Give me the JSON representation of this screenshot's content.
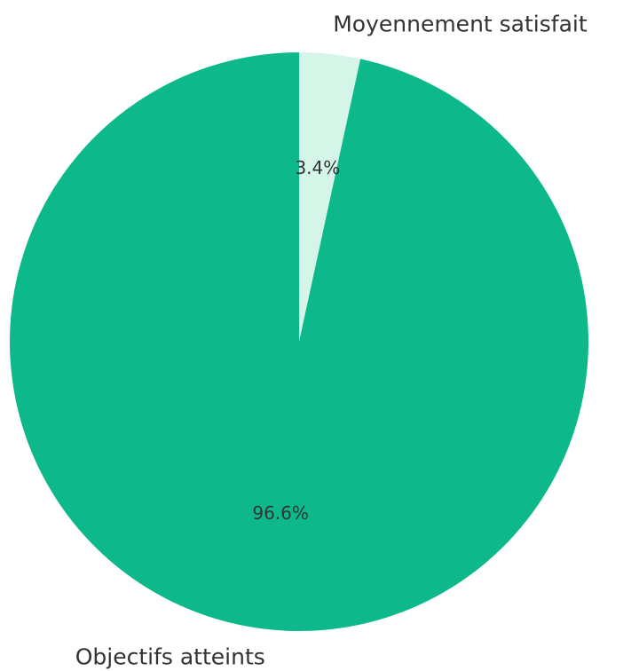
{
  "chart_data": {
    "type": "pie",
    "start_angle": "top",
    "direction": "clockwise",
    "slices": [
      {
        "label": "Moyennement satisfait",
        "value": 3.4,
        "display": "3.4%",
        "color": "#d5f5e9"
      },
      {
        "label": "Objectifs atteints",
        "value": 96.6,
        "display": "96.6%",
        "color": "#0db98a"
      }
    ]
  }
}
